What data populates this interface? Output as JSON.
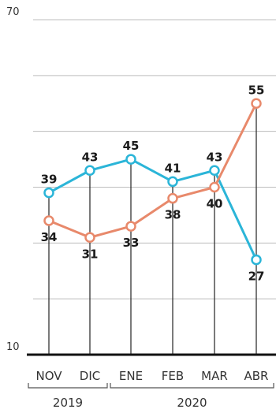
{
  "chart_data": {
    "type": "line",
    "categories": [
      "NOV",
      "DIC",
      "ENE",
      "FEB",
      "MAR",
      "ABR"
    ],
    "years": [
      {
        "label": "2019",
        "start": 0,
        "end": 1
      },
      {
        "label": "2020",
        "start": 2,
        "end": 5
      }
    ],
    "ylim": [
      10,
      70
    ],
    "yticks": [
      10,
      70
    ],
    "grid": true,
    "series": [
      {
        "color": "#2bb5d8",
        "values": [
          39,
          43,
          45,
          41,
          43,
          27
        ]
      },
      {
        "color": "#e8896b",
        "values": [
          34,
          31,
          33,
          38,
          40,
          55
        ]
      }
    ]
  }
}
